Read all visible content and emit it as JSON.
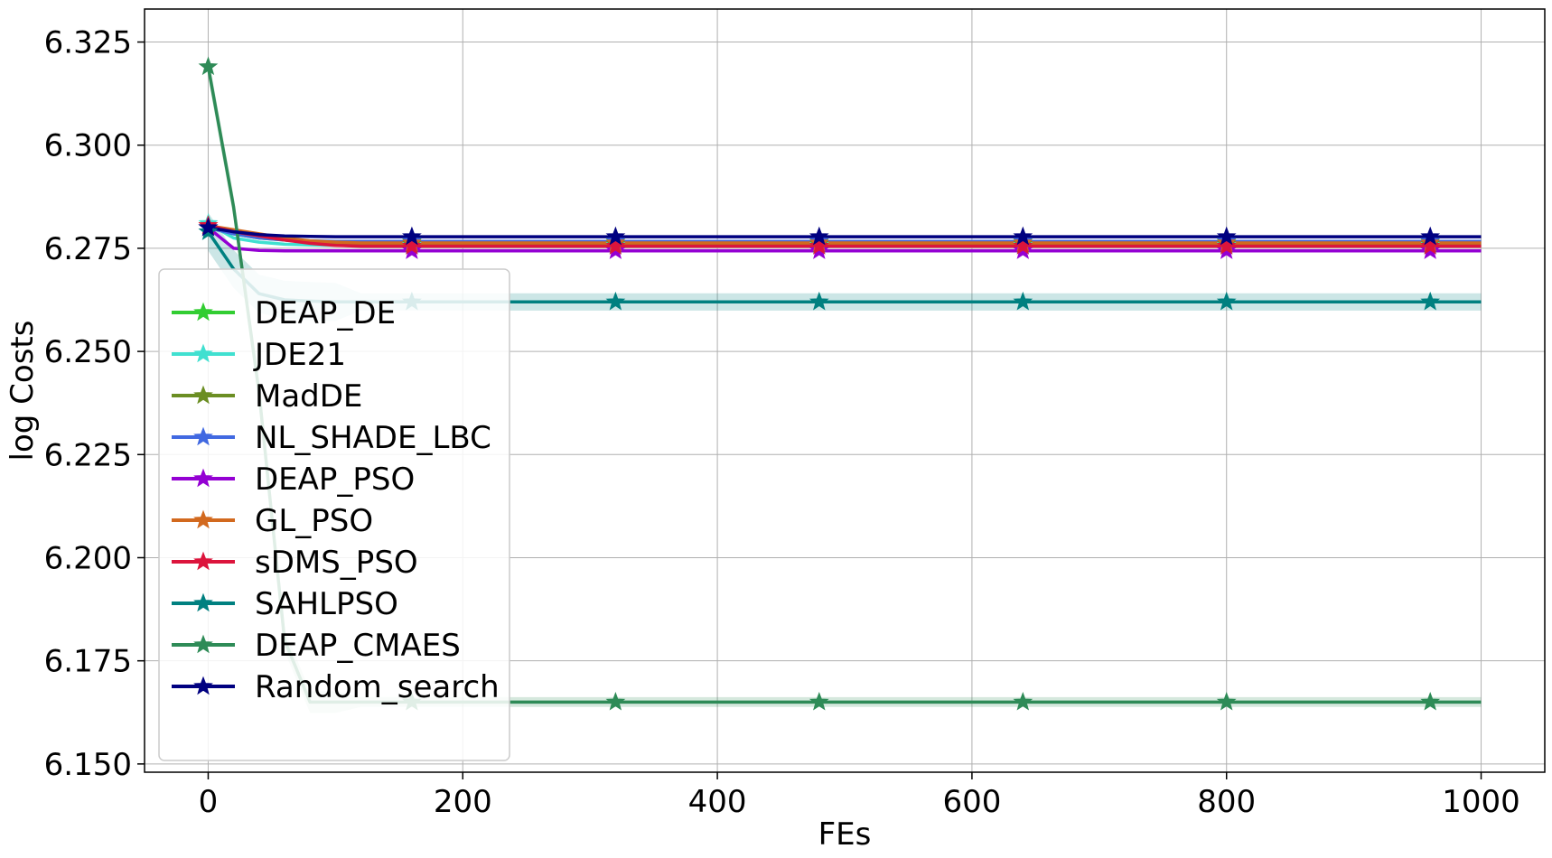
{
  "chart_data": {
    "type": "line",
    "title": "",
    "xlabel": "FEs",
    "ylabel": "log Costs",
    "xlim": [
      -50,
      1050
    ],
    "ylim": [
      6.148,
      6.333
    ],
    "xticks": [
      0,
      200,
      400,
      600,
      800,
      1000
    ],
    "yticks": [
      6.15,
      6.175,
      6.2,
      6.225,
      6.25,
      6.275,
      6.3,
      6.325
    ],
    "xtick_labels": [
      "0",
      "200",
      "400",
      "600",
      "800",
      "1000"
    ],
    "ytick_labels": [
      "6.150",
      "6.175",
      "6.200",
      "6.225",
      "6.250",
      "6.275",
      "6.300",
      "6.325"
    ],
    "grid": true,
    "legend_position": "lower-left",
    "marker": "star",
    "marker_x": [
      0,
      160,
      320,
      480,
      640,
      800,
      960
    ],
    "x": [
      0,
      20,
      40,
      60,
      80,
      100,
      120,
      160,
      200,
      320,
      480,
      640,
      800,
      960,
      1000
    ],
    "series": [
      {
        "name": "DEAP_DE",
        "color": "#32cd32",
        "values": [
          6.28,
          6.2785,
          6.2775,
          6.277,
          6.2768,
          6.2766,
          6.2765,
          6.2765,
          6.2765,
          6.2765,
          6.2765,
          6.2765,
          6.2765,
          6.2765,
          6.2765
        ]
      },
      {
        "name": "JDE21",
        "color": "#40e0d0",
        "values": [
          6.281,
          6.2775,
          6.2765,
          6.276,
          6.2758,
          6.2757,
          6.2757,
          6.2757,
          6.2757,
          6.2757,
          6.2757,
          6.2757,
          6.2757,
          6.2757,
          6.2757
        ]
      },
      {
        "name": "MadDE",
        "color": "#6b8e23",
        "values": [
          6.28,
          6.279,
          6.278,
          6.277,
          6.2765,
          6.2762,
          6.276,
          6.276,
          6.276,
          6.276,
          6.276,
          6.276,
          6.276,
          6.276,
          6.276
        ]
      },
      {
        "name": "NL_SHADE_LBC",
        "color": "#4169e1",
        "values": [
          6.28,
          6.2785,
          6.2775,
          6.277,
          6.2768,
          6.2767,
          6.2767,
          6.2767,
          6.2767,
          6.2767,
          6.2767,
          6.2767,
          6.2767,
          6.2767,
          6.2767
        ]
      },
      {
        "name": "DEAP_PSO",
        "color": "#9400d3",
        "values": [
          6.28,
          6.275,
          6.2745,
          6.2744,
          6.2744,
          6.2744,
          6.2744,
          6.2744,
          6.2744,
          6.2744,
          6.2744,
          6.2744,
          6.2744,
          6.2744,
          6.2744
        ]
      },
      {
        "name": "GL_PSO",
        "color": "#d2691e",
        "values": [
          6.2805,
          6.2795,
          6.2785,
          6.2775,
          6.2768,
          6.2765,
          6.2763,
          6.2763,
          6.2763,
          6.2763,
          6.2763,
          6.2763,
          6.2763,
          6.2763,
          6.2763
        ]
      },
      {
        "name": "sDMS_PSO",
        "color": "#dc143c",
        "values": [
          6.2805,
          6.279,
          6.278,
          6.277,
          6.2762,
          6.2757,
          6.2755,
          6.2755,
          6.2755,
          6.2755,
          6.2755,
          6.2755,
          6.2755,
          6.2755,
          6.2755
        ]
      },
      {
        "name": "SAHLPSO",
        "color": "#008080",
        "values": [
          6.279,
          6.27,
          6.264,
          6.2625,
          6.2622,
          6.262,
          6.262,
          6.262,
          6.262,
          6.262,
          6.262,
          6.262,
          6.262,
          6.262,
          6.262
        ]
      },
      {
        "name": "DEAP_CMAES",
        "color": "#2e8b57",
        "values": [
          6.319,
          6.285,
          6.24,
          6.18,
          6.165,
          6.165,
          6.165,
          6.165,
          6.165,
          6.165,
          6.165,
          6.165,
          6.165,
          6.165,
          6.165
        ]
      },
      {
        "name": "Random_search",
        "color": "#000080",
        "values": [
          6.28,
          6.279,
          6.2783,
          6.278,
          6.2779,
          6.2778,
          6.2778,
          6.2778,
          6.2778,
          6.2778,
          6.2778,
          6.2778,
          6.2778,
          6.2778,
          6.2778
        ]
      }
    ]
  }
}
